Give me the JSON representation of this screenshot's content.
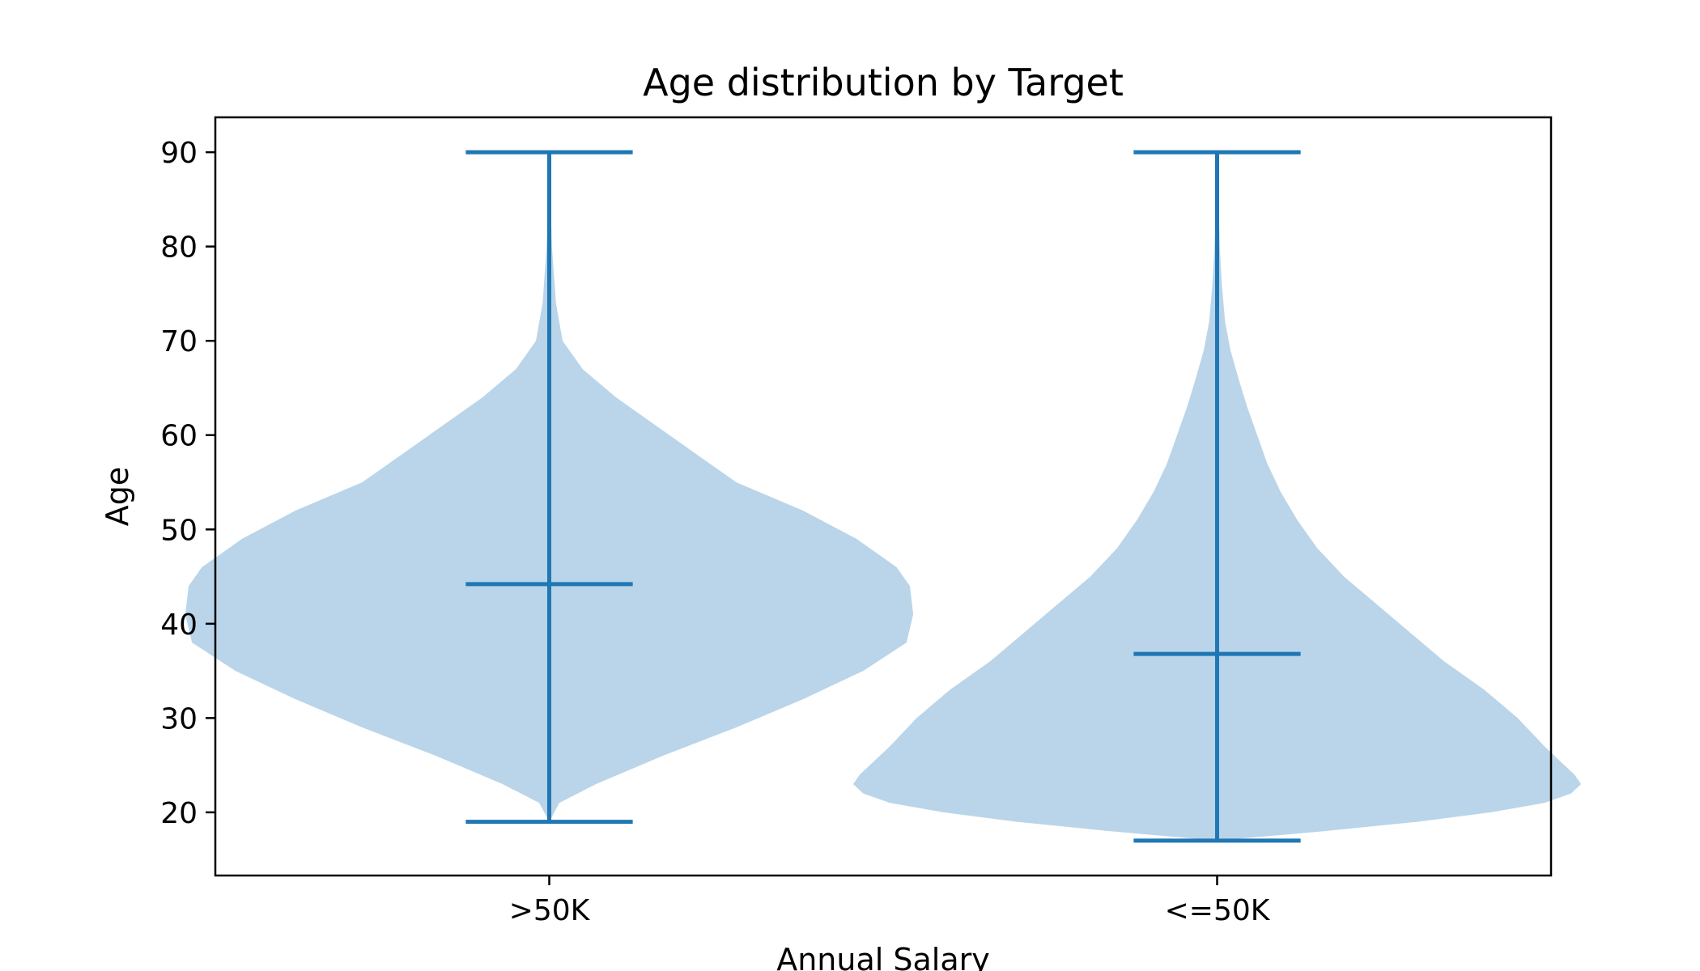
{
  "chart_data": {
    "type": "violin",
    "title": "Age distribution by Target",
    "xlabel": "Annual Salary",
    "ylabel": "Age",
    "categories": [
      ">50K",
      "<=50K"
    ],
    "ylim": [
      13.3,
      93.7
    ],
    "yticks": [
      20,
      30,
      40,
      50,
      60,
      70,
      80,
      90
    ],
    "grid": false,
    "fill_color": "#bad5e9",
    "line_color": "#1f77b4",
    "series": [
      {
        "category": ">50K",
        "min": 19,
        "max": 90,
        "mean": 44.2,
        "density": [
          {
            "age": 19,
            "width": 0.0
          },
          {
            "age": 21,
            "width": 0.015
          },
          {
            "age": 23,
            "width": 0.07
          },
          {
            "age": 26,
            "width": 0.17
          },
          {
            "age": 29,
            "width": 0.28
          },
          {
            "age": 32,
            "width": 0.38
          },
          {
            "age": 35,
            "width": 0.47
          },
          {
            "age": 38,
            "width": 0.535
          },
          {
            "age": 41,
            "width": 0.545
          },
          {
            "age": 44,
            "width": 0.54
          },
          {
            "age": 46,
            "width": 0.52
          },
          {
            "age": 49,
            "width": 0.46
          },
          {
            "age": 52,
            "width": 0.38
          },
          {
            "age": 55,
            "width": 0.28
          },
          {
            "age": 58,
            "width": 0.22
          },
          {
            "age": 61,
            "width": 0.16
          },
          {
            "age": 64,
            "width": 0.1
          },
          {
            "age": 67,
            "width": 0.05
          },
          {
            "age": 70,
            "width": 0.02
          },
          {
            "age": 74,
            "width": 0.01
          },
          {
            "age": 80,
            "width": 0.004
          },
          {
            "age": 90,
            "width": 0.0
          }
        ]
      },
      {
        "category": "<=50K",
        "min": 17,
        "max": 90,
        "mean": 36.8,
        "density": [
          {
            "age": 17,
            "width": 0.0
          },
          {
            "age": 18,
            "width": 0.16
          },
          {
            "age": 19,
            "width": 0.3
          },
          {
            "age": 20,
            "width": 0.41
          },
          {
            "age": 21,
            "width": 0.49
          },
          {
            "age": 22,
            "width": 0.53
          },
          {
            "age": 23,
            "width": 0.545
          },
          {
            "age": 24,
            "width": 0.535
          },
          {
            "age": 25,
            "width": 0.52
          },
          {
            "age": 27,
            "width": 0.49
          },
          {
            "age": 30,
            "width": 0.45
          },
          {
            "age": 33,
            "width": 0.4
          },
          {
            "age": 36,
            "width": 0.34
          },
          {
            "age": 39,
            "width": 0.29
          },
          {
            "age": 42,
            "width": 0.24
          },
          {
            "age": 45,
            "width": 0.19
          },
          {
            "age": 48,
            "width": 0.15
          },
          {
            "age": 51,
            "width": 0.12
          },
          {
            "age": 54,
            "width": 0.095
          },
          {
            "age": 57,
            "width": 0.075
          },
          {
            "age": 60,
            "width": 0.06
          },
          {
            "age": 63,
            "width": 0.045
          },
          {
            "age": 66,
            "width": 0.032
          },
          {
            "age": 69,
            "width": 0.02
          },
          {
            "age": 72,
            "width": 0.012
          },
          {
            "age": 76,
            "width": 0.007
          },
          {
            "age": 80,
            "width": 0.004
          },
          {
            "age": 85,
            "width": 0.002
          },
          {
            "age": 90,
            "width": 0.0
          }
        ]
      }
    ]
  }
}
